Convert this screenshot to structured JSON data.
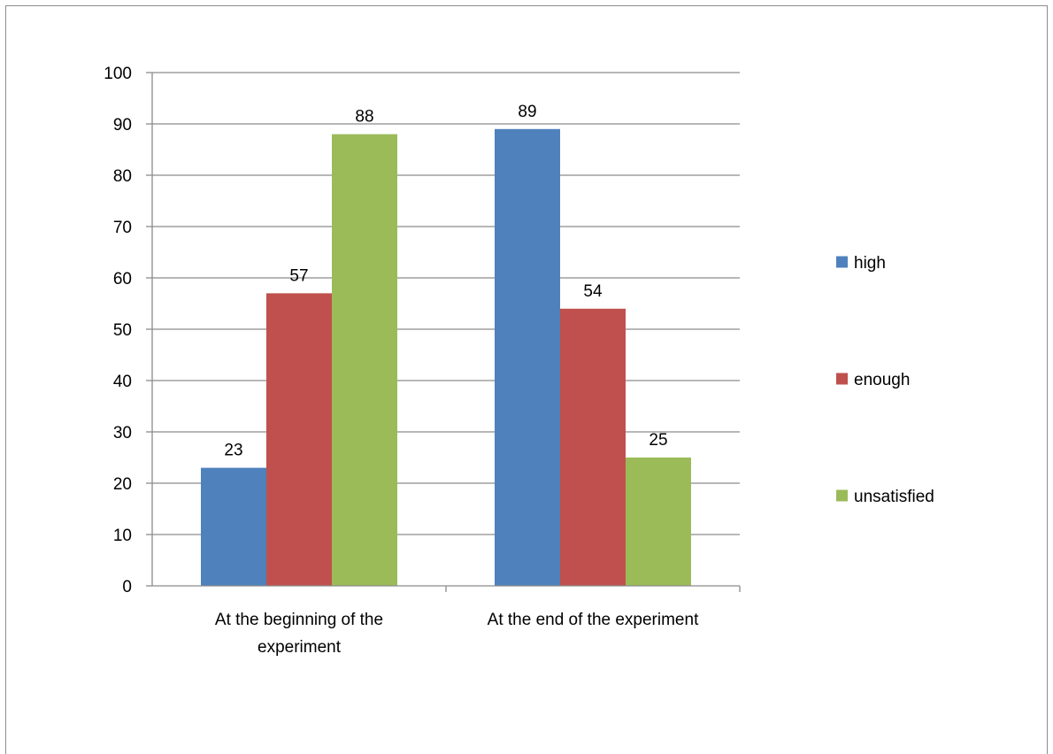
{
  "chart_data": {
    "type": "bar",
    "title": "",
    "xlabel": "",
    "ylabel": "",
    "categories": [
      [
        "At the beginning of the",
        "experiment"
      ],
      [
        "At the end of the experiment"
      ]
    ],
    "series": [
      {
        "name": "high",
        "color": "#4f81bd",
        "values": [
          23,
          89
        ]
      },
      {
        "name": "enough",
        "color": "#c0504d",
        "values": [
          57,
          54
        ]
      },
      {
        "name": "unsatisfied",
        "color": "#9bbb59",
        "values": [
          88,
          25
        ]
      }
    ],
    "ylim": [
      0,
      100
    ],
    "ytick_step": 10,
    "grid": true,
    "data_labels": true,
    "legend_position": "right"
  }
}
